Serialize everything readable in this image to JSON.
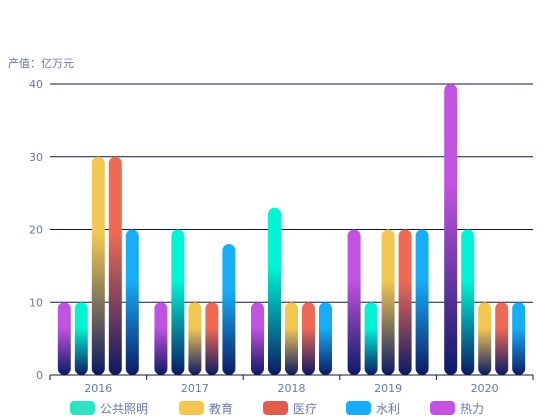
{
  "chart_data": {
    "type": "bar",
    "unit_label": "产值：亿万元",
    "categories": [
      "2016",
      "2017",
      "2018",
      "2019",
      "2020"
    ],
    "ylim": [
      0,
      40
    ],
    "yticks": [
      "0",
      "10",
      "20",
      "30",
      "40"
    ],
    "grid": true,
    "legend_position": "bottom",
    "series": [
      {
        "name": "热力",
        "color": "#c153e0",
        "values": [
          10,
          10,
          10,
          20,
          40
        ]
      },
      {
        "name": "公共照明",
        "color": "#00f5d4",
        "values": [
          10,
          20,
          23,
          10,
          20
        ]
      },
      {
        "name": "教育",
        "color": "#f3c852",
        "values": [
          30,
          10,
          10,
          20,
          10
        ]
      },
      {
        "name": "医疗",
        "color": "#ee6a55",
        "values": [
          30,
          10,
          10,
          20,
          10
        ]
      },
      {
        "name": "水利",
        "color": "#18aef7",
        "values": [
          20,
          18,
          10,
          20,
          10
        ]
      }
    ],
    "legend": [
      {
        "name": "公共照明",
        "color": "#2de3c2"
      },
      {
        "name": "教育",
        "color": "#f3c852"
      },
      {
        "name": "医疗",
        "color": "#e35b4d"
      },
      {
        "name": "水利",
        "color": "#18aef7"
      },
      {
        "name": "热力",
        "color": "#c153e0"
      }
    ]
  }
}
